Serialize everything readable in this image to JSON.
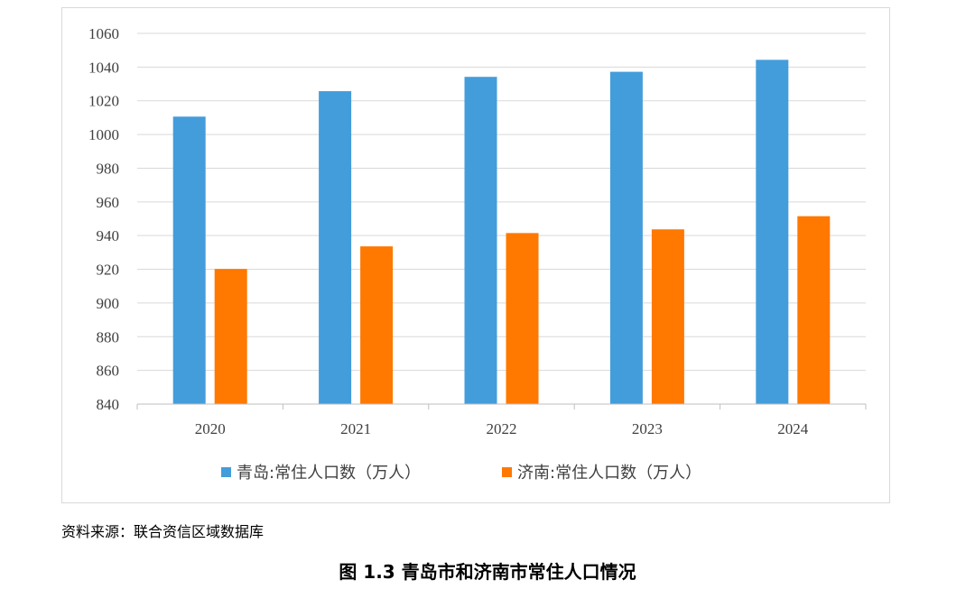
{
  "chart_data": {
    "type": "bar",
    "categories": [
      "2020",
      "2021",
      "2022",
      "2023",
      "2024"
    ],
    "series": [
      {
        "name": "青岛:常住人口数（万人）",
        "values": [
          1010.6,
          1025.7,
          1034.2,
          1037.2,
          1044.3
        ],
        "color": "#449ddb"
      },
      {
        "name": "济南:常住人口数（万人）",
        "values": [
          920.2,
          933.6,
          941.5,
          943.7,
          951.5
        ],
        "color": "#ff7800"
      }
    ],
    "title": "",
    "xlabel": "",
    "ylabel": "",
    "ylim": [
      840,
      1060
    ],
    "yticks": [
      "840",
      "860",
      "880",
      "900",
      "920",
      "940",
      "960",
      "980",
      "1000",
      "1020",
      "1040",
      "1060"
    ],
    "grid": true,
    "legend_position": "bottom"
  },
  "source_note": "资料来源：联合资信区域数据库",
  "figure_caption": "图 1.3 青岛市和济南市常住人口情况"
}
